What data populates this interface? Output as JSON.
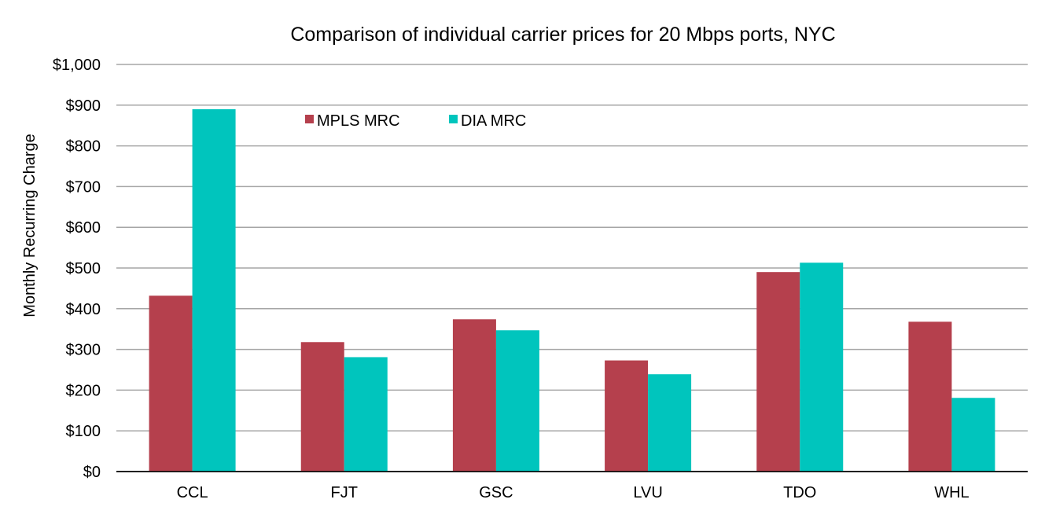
{
  "chart_data": {
    "type": "bar",
    "title": "Comparison of individual carrier prices for 20 Mbps ports, NYC",
    "xlabel": "",
    "ylabel": "Monthly Recurring Charge",
    "categories": [
      "CCL",
      "FJT",
      "GSC",
      "LVU",
      "TDO",
      "WHL"
    ],
    "series": [
      {
        "name": "MPLS MRC",
        "color": "#b5404d",
        "values": [
          432,
          318,
          374,
          273,
          490,
          368
        ]
      },
      {
        "name": "DIA MRC",
        "color": "#00c5bd",
        "values": [
          890,
          281,
          347,
          239,
          513,
          181
        ]
      }
    ],
    "ylim": [
      0,
      1000
    ],
    "yticks": [
      0,
      100,
      200,
      300,
      400,
      500,
      600,
      700,
      800,
      900,
      1000
    ],
    "ytick_labels": [
      "$0",
      "$100",
      "$200",
      "$300",
      "$400",
      "$500",
      "$600",
      "$700",
      "$800",
      "$900",
      "$1,000"
    ],
    "grid": true,
    "legend_position": "top-left"
  }
}
